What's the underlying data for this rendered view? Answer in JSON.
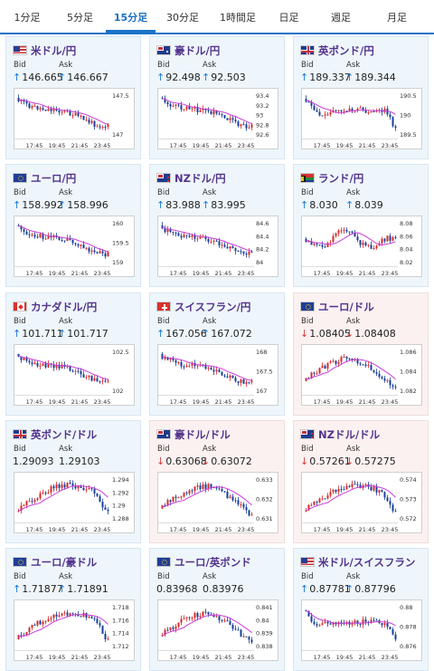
{
  "tabs": [
    {
      "label": "1分足",
      "active": false
    },
    {
      "label": "5分足",
      "active": false
    },
    {
      "label": "15分足",
      "active": true
    },
    {
      "label": "30分足",
      "active": false
    },
    {
      "label": "1時間足",
      "active": false
    },
    {
      "label": "日足",
      "active": false
    },
    {
      "label": "週足",
      "active": false
    },
    {
      "label": "月足",
      "active": false
    }
  ],
  "bid_label": "Bid",
  "ask_label": "Ask",
  "colors": {
    "up_arrow": "#1b77c9",
    "down_arrow": "#d43b3b",
    "title": "#53338c",
    "bull": "#d62b2b",
    "bear": "#1a3f9a",
    "ma": "#c93bd8"
  },
  "pairs": [
    {
      "name": "米ドル/円",
      "flag": "us",
      "dir": "up",
      "bid": "146.665",
      "ask": "146.667",
      "trend": "down",
      "chart_data": {
        "type": "candlestick",
        "x_ticks": [
          "17:45",
          "19:45",
          "21:45",
          "23:45"
        ],
        "y_ticks": [
          "147.5",
          "147"
        ]
      }
    },
    {
      "name": "豪ドル/円",
      "flag": "au",
      "dir": "up",
      "bid": "92.498",
      "ask": "92.503",
      "trend": "down",
      "chart_data": {
        "type": "candlestick",
        "x_ticks": [
          "17:45",
          "19:45",
          "21:45",
          "23:45"
        ],
        "y_ticks": [
          "93.4",
          "93.2",
          "93",
          "92.8",
          "92.6"
        ]
      }
    },
    {
      "name": "英ポンド/円",
      "flag": "gb",
      "dir": "up",
      "bid": "189.337",
      "ask": "189.344",
      "trend": "dip",
      "chart_data": {
        "type": "candlestick",
        "x_ticks": [
          "17:45",
          "19:45",
          "21:45",
          "23:45"
        ],
        "y_ticks": [
          "190.5",
          "190",
          "189.5"
        ]
      }
    },
    {
      "name": "ユーロ/円",
      "flag": "eu",
      "dir": "up",
      "bid": "158.992",
      "ask": "158.996",
      "trend": "down",
      "chart_data": {
        "type": "candlestick",
        "x_ticks": [
          "17:45",
          "19:45",
          "21:45",
          "23:45"
        ],
        "y_ticks": [
          "160",
          "159.5",
          "159"
        ]
      }
    },
    {
      "name": "NZドル/円",
      "flag": "nz",
      "dir": "up",
      "bid": "83.988",
      "ask": "83.995",
      "trend": "down",
      "chart_data": {
        "type": "candlestick",
        "x_ticks": [
          "17:45",
          "19:45",
          "21:45",
          "23:45"
        ],
        "y_ticks": [
          "84.6",
          "84.4",
          "84.2",
          "84"
        ]
      }
    },
    {
      "name": "ランド/円",
      "flag": "za",
      "dir": "up",
      "bid": "8.030",
      "ask": "8.039",
      "trend": "flat",
      "chart_data": {
        "type": "candlestick",
        "x_ticks": [
          "17:45",
          "19:45",
          "21:45",
          "23:45"
        ],
        "y_ticks": [
          "8.08",
          "8.06",
          "8.04",
          "8.02"
        ]
      }
    },
    {
      "name": "カナダドル/円",
      "flag": "ca",
      "dir": "up",
      "bid": "101.711",
      "ask": "101.717",
      "trend": "down",
      "chart_data": {
        "type": "candlestick",
        "x_ticks": [
          "17:45",
          "19:45",
          "21:45",
          "23:45"
        ],
        "y_ticks": [
          "102.5",
          "102"
        ]
      }
    },
    {
      "name": "スイスフラン/円",
      "flag": "ch",
      "dir": "up",
      "bid": "167.056",
      "ask": "167.072",
      "trend": "down",
      "chart_data": {
        "type": "candlestick",
        "x_ticks": [
          "17:45",
          "19:45",
          "21:45",
          "23:45"
        ],
        "y_ticks": [
          "168",
          "167.5",
          "167"
        ]
      }
    },
    {
      "name": "ユーロ/ドル",
      "flag": "eu",
      "dir": "down",
      "bid": "1.08405",
      "ask": "1.08408",
      "trend": "bump",
      "chart_data": {
        "type": "candlestick",
        "x_ticks": [
          "17:45",
          "19:45",
          "21:45",
          "23:45"
        ],
        "y_ticks": [
          "1.086",
          "1.084",
          "1.082"
        ]
      }
    },
    {
      "name": "英ポンド/ドル",
      "flag": "gb",
      "dir": "none",
      "bid": "1.29093",
      "ask": "1.29103",
      "trend": "rise",
      "chart_data": {
        "type": "candlestick",
        "x_ticks": [
          "17:45",
          "19:45",
          "21:45",
          "23:45"
        ],
        "y_ticks": [
          "1.294",
          "1.292",
          "1.29",
          "1.288"
        ]
      }
    },
    {
      "name": "豪ドル/ドル",
      "flag": "au",
      "dir": "down",
      "bid": "0.63068",
      "ask": "0.63072",
      "trend": "bump",
      "chart_data": {
        "type": "candlestick",
        "x_ticks": [
          "17:45",
          "19:45",
          "21:45",
          "23:45"
        ],
        "y_ticks": [
          "0.633",
          "0.632",
          "0.631"
        ]
      }
    },
    {
      "name": "NZドル/ドル",
      "flag": "nz",
      "dir": "down",
      "bid": "0.57261",
      "ask": "0.57275",
      "trend": "rise",
      "chart_data": {
        "type": "candlestick",
        "x_ticks": [
          "17:45",
          "19:45",
          "21:45",
          "23:45"
        ],
        "y_ticks": [
          "0.574",
          "0.573",
          "0.572"
        ]
      }
    },
    {
      "name": "ユーロ/豪ドル",
      "flag": "eu",
      "dir": "up",
      "bid": "1.71877",
      "ask": "1.71891",
      "trend": "rise",
      "chart_data": {
        "type": "candlestick",
        "x_ticks": [
          "17:45",
          "19:45",
          "21:45",
          "23:45"
        ],
        "y_ticks": [
          "1.718",
          "1.716",
          "1.714",
          "1.712"
        ]
      }
    },
    {
      "name": "ユーロ/英ポンド",
      "flag": "eu",
      "dir": "none",
      "bid": "0.83968",
      "ask": "0.83976",
      "trend": "bump",
      "chart_data": {
        "type": "candlestick",
        "x_ticks": [
          "17:45",
          "19:45",
          "21:45",
          "23:45"
        ],
        "y_ticks": [
          "0.841",
          "0.84",
          "0.839",
          "0.838"
        ]
      }
    },
    {
      "name": "米ドル/スイスフラン",
      "flag": "us",
      "dir": "up",
      "bid": "0.87781",
      "ask": "0.87796",
      "trend": "dip",
      "chart_data": {
        "type": "candlestick",
        "x_ticks": [
          "17:45",
          "19:45",
          "21:45",
          "23:45"
        ],
        "y_ticks": [
          "0.88",
          "0.878",
          "0.876"
        ]
      }
    }
  ]
}
